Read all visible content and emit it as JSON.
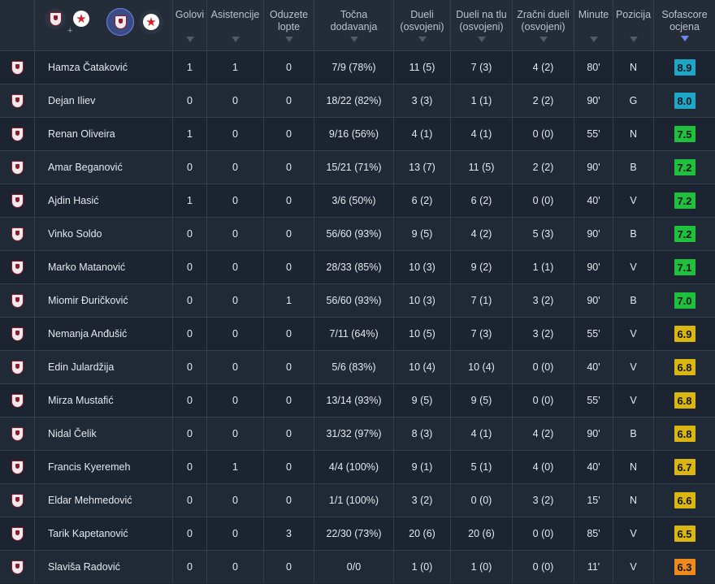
{
  "header": {
    "columns": [
      {
        "label": "Golovi"
      },
      {
        "label": "Asistencije"
      },
      {
        "label": "Oduzete\nlopte"
      },
      {
        "label": "Točna\ndodavanja"
      },
      {
        "label": "Dueli\n(osvojeni)"
      },
      {
        "label": "Dueli na tlu\n(osvojeni)"
      },
      {
        "label": "Zračni dueli\n(osvojeni)"
      },
      {
        "label": "Minute"
      },
      {
        "label": "Pozicija"
      },
      {
        "label": "Sofascore\nocjena"
      }
    ],
    "team_selector": {
      "combined_icon": "team-shield-icon",
      "plus": "+",
      "home_icon": "team-shield-icon",
      "away_icon": "red-star-icon"
    },
    "active_sort_color": "#6e86f0"
  },
  "rating_colors": {
    "blue": "#1ea6c8",
    "green": "#1fc13c",
    "yellow": "#d9b610",
    "orange": "#f08a1c"
  },
  "players": [
    {
      "name": "Hamza Čataković",
      "goals": "1",
      "assists": "1",
      "tackles": "0",
      "passes": "7/9 (78%)",
      "duels": "11 (5)",
      "ground": "7 (3)",
      "aerial": "4 (2)",
      "minutes": "80'",
      "position": "N",
      "rating": "8.9",
      "rating_color": "#1ea6c8"
    },
    {
      "name": "Dejan Iliev",
      "goals": "0",
      "assists": "0",
      "tackles": "0",
      "passes": "18/22 (82%)",
      "duels": "3 (3)",
      "ground": "1 (1)",
      "aerial": "2 (2)",
      "minutes": "90'",
      "position": "G",
      "rating": "8.0",
      "rating_color": "#1ea6c8"
    },
    {
      "name": "Renan Oliveira",
      "goals": "1",
      "assists": "0",
      "tackles": "0",
      "passes": "9/16 (56%)",
      "duels": "4 (1)",
      "ground": "4 (1)",
      "aerial": "0 (0)",
      "minutes": "55'",
      "position": "N",
      "rating": "7.5",
      "rating_color": "#1fc13c"
    },
    {
      "name": "Amar Beganović",
      "goals": "0",
      "assists": "0",
      "tackles": "0",
      "passes": "15/21 (71%)",
      "duels": "13 (7)",
      "ground": "11 (5)",
      "aerial": "2 (2)",
      "minutes": "90'",
      "position": "B",
      "rating": "7.2",
      "rating_color": "#1fc13c"
    },
    {
      "name": "Ajdin Hasić",
      "goals": "1",
      "assists": "0",
      "tackles": "0",
      "passes": "3/6 (50%)",
      "duels": "6 (2)",
      "ground": "6 (2)",
      "aerial": "0 (0)",
      "minutes": "40'",
      "position": "V",
      "rating": "7.2",
      "rating_color": "#1fc13c"
    },
    {
      "name": "Vinko Soldo",
      "goals": "0",
      "assists": "0",
      "tackles": "0",
      "passes": "56/60 (93%)",
      "duels": "9 (5)",
      "ground": "4 (2)",
      "aerial": "5 (3)",
      "minutes": "90'",
      "position": "B",
      "rating": "7.2",
      "rating_color": "#1fc13c"
    },
    {
      "name": "Marko Matanović",
      "goals": "0",
      "assists": "0",
      "tackles": "0",
      "passes": "28/33 (85%)",
      "duels": "10 (3)",
      "ground": "9 (2)",
      "aerial": "1 (1)",
      "minutes": "90'",
      "position": "V",
      "rating": "7.1",
      "rating_color": "#1fc13c"
    },
    {
      "name": "Miomir Đuričković",
      "goals": "0",
      "assists": "0",
      "tackles": "1",
      "passes": "56/60 (93%)",
      "duels": "10 (3)",
      "ground": "7 (1)",
      "aerial": "3 (2)",
      "minutes": "90'",
      "position": "B",
      "rating": "7.0",
      "rating_color": "#1fc13c"
    },
    {
      "name": "Nemanja Anđušić",
      "goals": "0",
      "assists": "0",
      "tackles": "0",
      "passes": "7/11 (64%)",
      "duels": "10 (5)",
      "ground": "7 (3)",
      "aerial": "3 (2)",
      "minutes": "55'",
      "position": "V",
      "rating": "6.9",
      "rating_color": "#d9b610"
    },
    {
      "name": "Edin Julardžija",
      "goals": "0",
      "assists": "0",
      "tackles": "0",
      "passes": "5/6 (83%)",
      "duels": "10 (4)",
      "ground": "10 (4)",
      "aerial": "0 (0)",
      "minutes": "40'",
      "position": "V",
      "rating": "6.8",
      "rating_color": "#d9b610"
    },
    {
      "name": "Mirza Mustafić",
      "goals": "0",
      "assists": "0",
      "tackles": "0",
      "passes": "13/14 (93%)",
      "duels": "9 (5)",
      "ground": "9 (5)",
      "aerial": "0 (0)",
      "minutes": "55'",
      "position": "V",
      "rating": "6.8",
      "rating_color": "#d9b610"
    },
    {
      "name": "Nidal Čelik",
      "goals": "0",
      "assists": "0",
      "tackles": "0",
      "passes": "31/32 (97%)",
      "duels": "8 (3)",
      "ground": "4 (1)",
      "aerial": "4 (2)",
      "minutes": "90'",
      "position": "B",
      "rating": "6.8",
      "rating_color": "#d9b610"
    },
    {
      "name": "Francis Kyeremeh",
      "goals": "0",
      "assists": "1",
      "tackles": "0",
      "passes": "4/4 (100%)",
      "duels": "9 (1)",
      "ground": "5 (1)",
      "aerial": "4 (0)",
      "minutes": "40'",
      "position": "N",
      "rating": "6.7",
      "rating_color": "#d9b610"
    },
    {
      "name": "Eldar Mehmedović",
      "goals": "0",
      "assists": "0",
      "tackles": "0",
      "passes": "1/1 (100%)",
      "duels": "3 (2)",
      "ground": "0 (0)",
      "aerial": "3 (2)",
      "minutes": "15'",
      "position": "N",
      "rating": "6.6",
      "rating_color": "#d9b610"
    },
    {
      "name": "Tarik Kapetanović",
      "goals": "0",
      "assists": "0",
      "tackles": "3",
      "passes": "22/30 (73%)",
      "duels": "20 (6)",
      "ground": "20 (6)",
      "aerial": "0 (0)",
      "minutes": "85'",
      "position": "V",
      "rating": "6.5",
      "rating_color": "#d9b610"
    },
    {
      "name": "Slaviša Radović",
      "goals": "0",
      "assists": "0",
      "tackles": "0",
      "passes": "0/0",
      "duels": "1 (0)",
      "ground": "1 (0)",
      "aerial": "0 (0)",
      "minutes": "11'",
      "position": "V",
      "rating": "6.3",
      "rating_color": "#f08a1c"
    }
  ]
}
